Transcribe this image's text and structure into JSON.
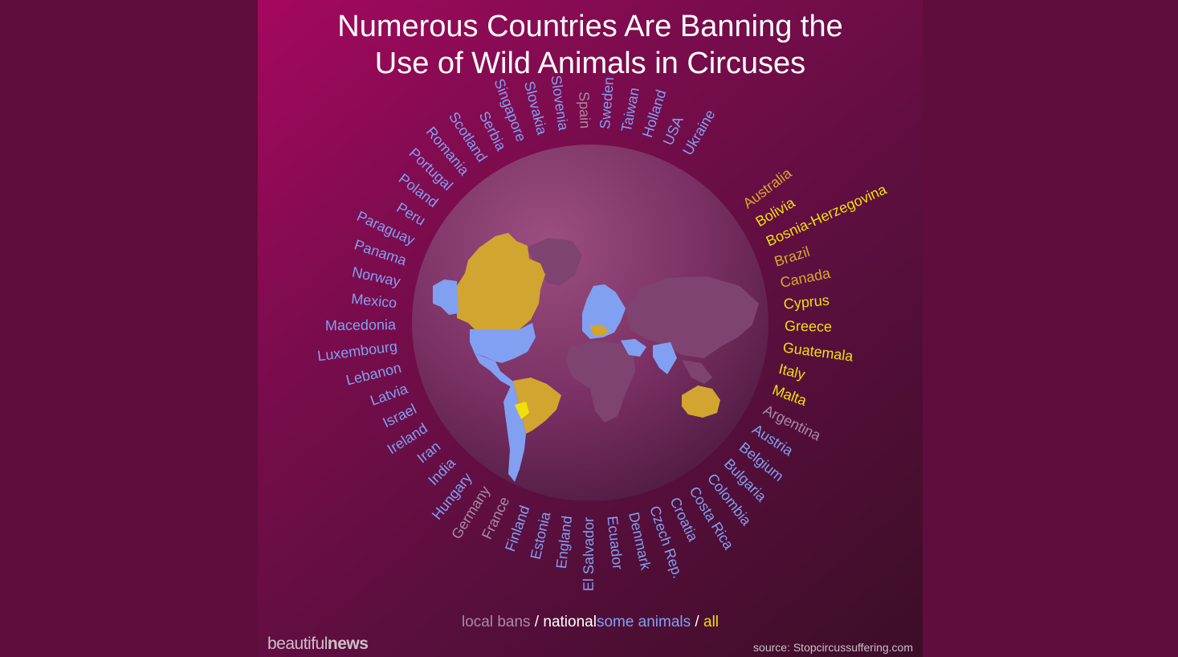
{
  "title": {
    "line1": "Numerous Countries Are Banning the",
    "line2": "Use of Wild Animals in Circuses"
  },
  "colors": {
    "local_ban": "#a98aa7",
    "national_some_animals": "#82a0f2",
    "national_all": "#f2df0a",
    "mixed_all": "#d8a92e",
    "text_white": "#ffffff"
  },
  "countries": [
    {
      "name": "Australia",
      "category": "mixed_all"
    },
    {
      "name": "Bolivia",
      "category": "national_all"
    },
    {
      "name": "Bosnia-Herzegovina",
      "category": "national_all"
    },
    {
      "name": "Brazil",
      "category": "mixed_all"
    },
    {
      "name": "Canada",
      "category": "mixed_all"
    },
    {
      "name": "Cyprus",
      "category": "national_all"
    },
    {
      "name": "Greece",
      "category": "national_all"
    },
    {
      "name": "Guatemala",
      "category": "national_all"
    },
    {
      "name": "Italy",
      "category": "national_all"
    },
    {
      "name": "Malta",
      "category": "national_all"
    },
    {
      "name": "Argentina",
      "category": "local_ban"
    },
    {
      "name": "Austria",
      "category": "national_some_animals"
    },
    {
      "name": "Belgium",
      "category": "national_some_animals"
    },
    {
      "name": "Bulgaria",
      "category": "national_some_animals"
    },
    {
      "name": "Colombia",
      "category": "national_some_animals"
    },
    {
      "name": "Costa Rica",
      "category": "national_some_animals"
    },
    {
      "name": "Croatia",
      "category": "national_some_animals"
    },
    {
      "name": "Czech Rep.",
      "category": "national_some_animals"
    },
    {
      "name": "Denmark",
      "category": "national_some_animals"
    },
    {
      "name": "Ecuador",
      "category": "national_some_animals"
    },
    {
      "name": "El Salvador",
      "category": "national_some_animals"
    },
    {
      "name": "England",
      "category": "national_some_animals"
    },
    {
      "name": "Estonia",
      "category": "national_some_animals"
    },
    {
      "name": "Finland",
      "category": "national_some_animals"
    },
    {
      "name": "France",
      "category": "local_ban"
    },
    {
      "name": "Germany",
      "category": "local_ban"
    },
    {
      "name": "Hungary",
      "category": "national_some_animals"
    },
    {
      "name": "India",
      "category": "national_some_animals"
    },
    {
      "name": "Iran",
      "category": "national_some_animals"
    },
    {
      "name": "Ireland",
      "category": "national_some_animals"
    },
    {
      "name": "Israel",
      "category": "national_some_animals"
    },
    {
      "name": "Latvia",
      "category": "national_some_animals"
    },
    {
      "name": "Lebanon",
      "category": "national_some_animals"
    },
    {
      "name": "Luxembourg",
      "category": "national_some_animals"
    },
    {
      "name": "Macedonia",
      "category": "national_some_animals"
    },
    {
      "name": "Mexico",
      "category": "national_some_animals"
    },
    {
      "name": "Norway",
      "category": "national_some_animals"
    },
    {
      "name": "Panama",
      "category": "national_some_animals"
    },
    {
      "name": "Paraguay",
      "category": "national_some_animals"
    },
    {
      "name": "Peru",
      "category": "national_some_animals"
    },
    {
      "name": "Poland",
      "category": "national_some_animals"
    },
    {
      "name": "Portugal",
      "category": "national_some_animals"
    },
    {
      "name": "Romania",
      "category": "national_some_animals"
    },
    {
      "name": "Scotland",
      "category": "national_some_animals"
    },
    {
      "name": "Serbia",
      "category": "national_some_animals"
    },
    {
      "name": "Singapore",
      "category": "national_some_animals"
    },
    {
      "name": "Slovakia",
      "category": "national_some_animals"
    },
    {
      "name": "Slovenia",
      "category": "national_some_animals"
    },
    {
      "name": "Spain",
      "category": "local_ban"
    },
    {
      "name": "Sweden",
      "category": "national_some_animals"
    },
    {
      "name": "Taiwan",
      "category": "national_some_animals"
    },
    {
      "name": "Holland",
      "category": "national_some_animals"
    },
    {
      "name": "USA",
      "category": "national_some_animals"
    },
    {
      "name": "Ukraine",
      "category": "national_some_animals"
    }
  ],
  "legend": {
    "local_bans": "local bans",
    "slash1": " / ",
    "national": "national",
    "some_animals": "some animals",
    "slash2": " / ",
    "all": "all"
  },
  "brand": {
    "part1": "beautiful",
    "part2": "news"
  },
  "source": "source: Stopcircussuffering.com"
}
